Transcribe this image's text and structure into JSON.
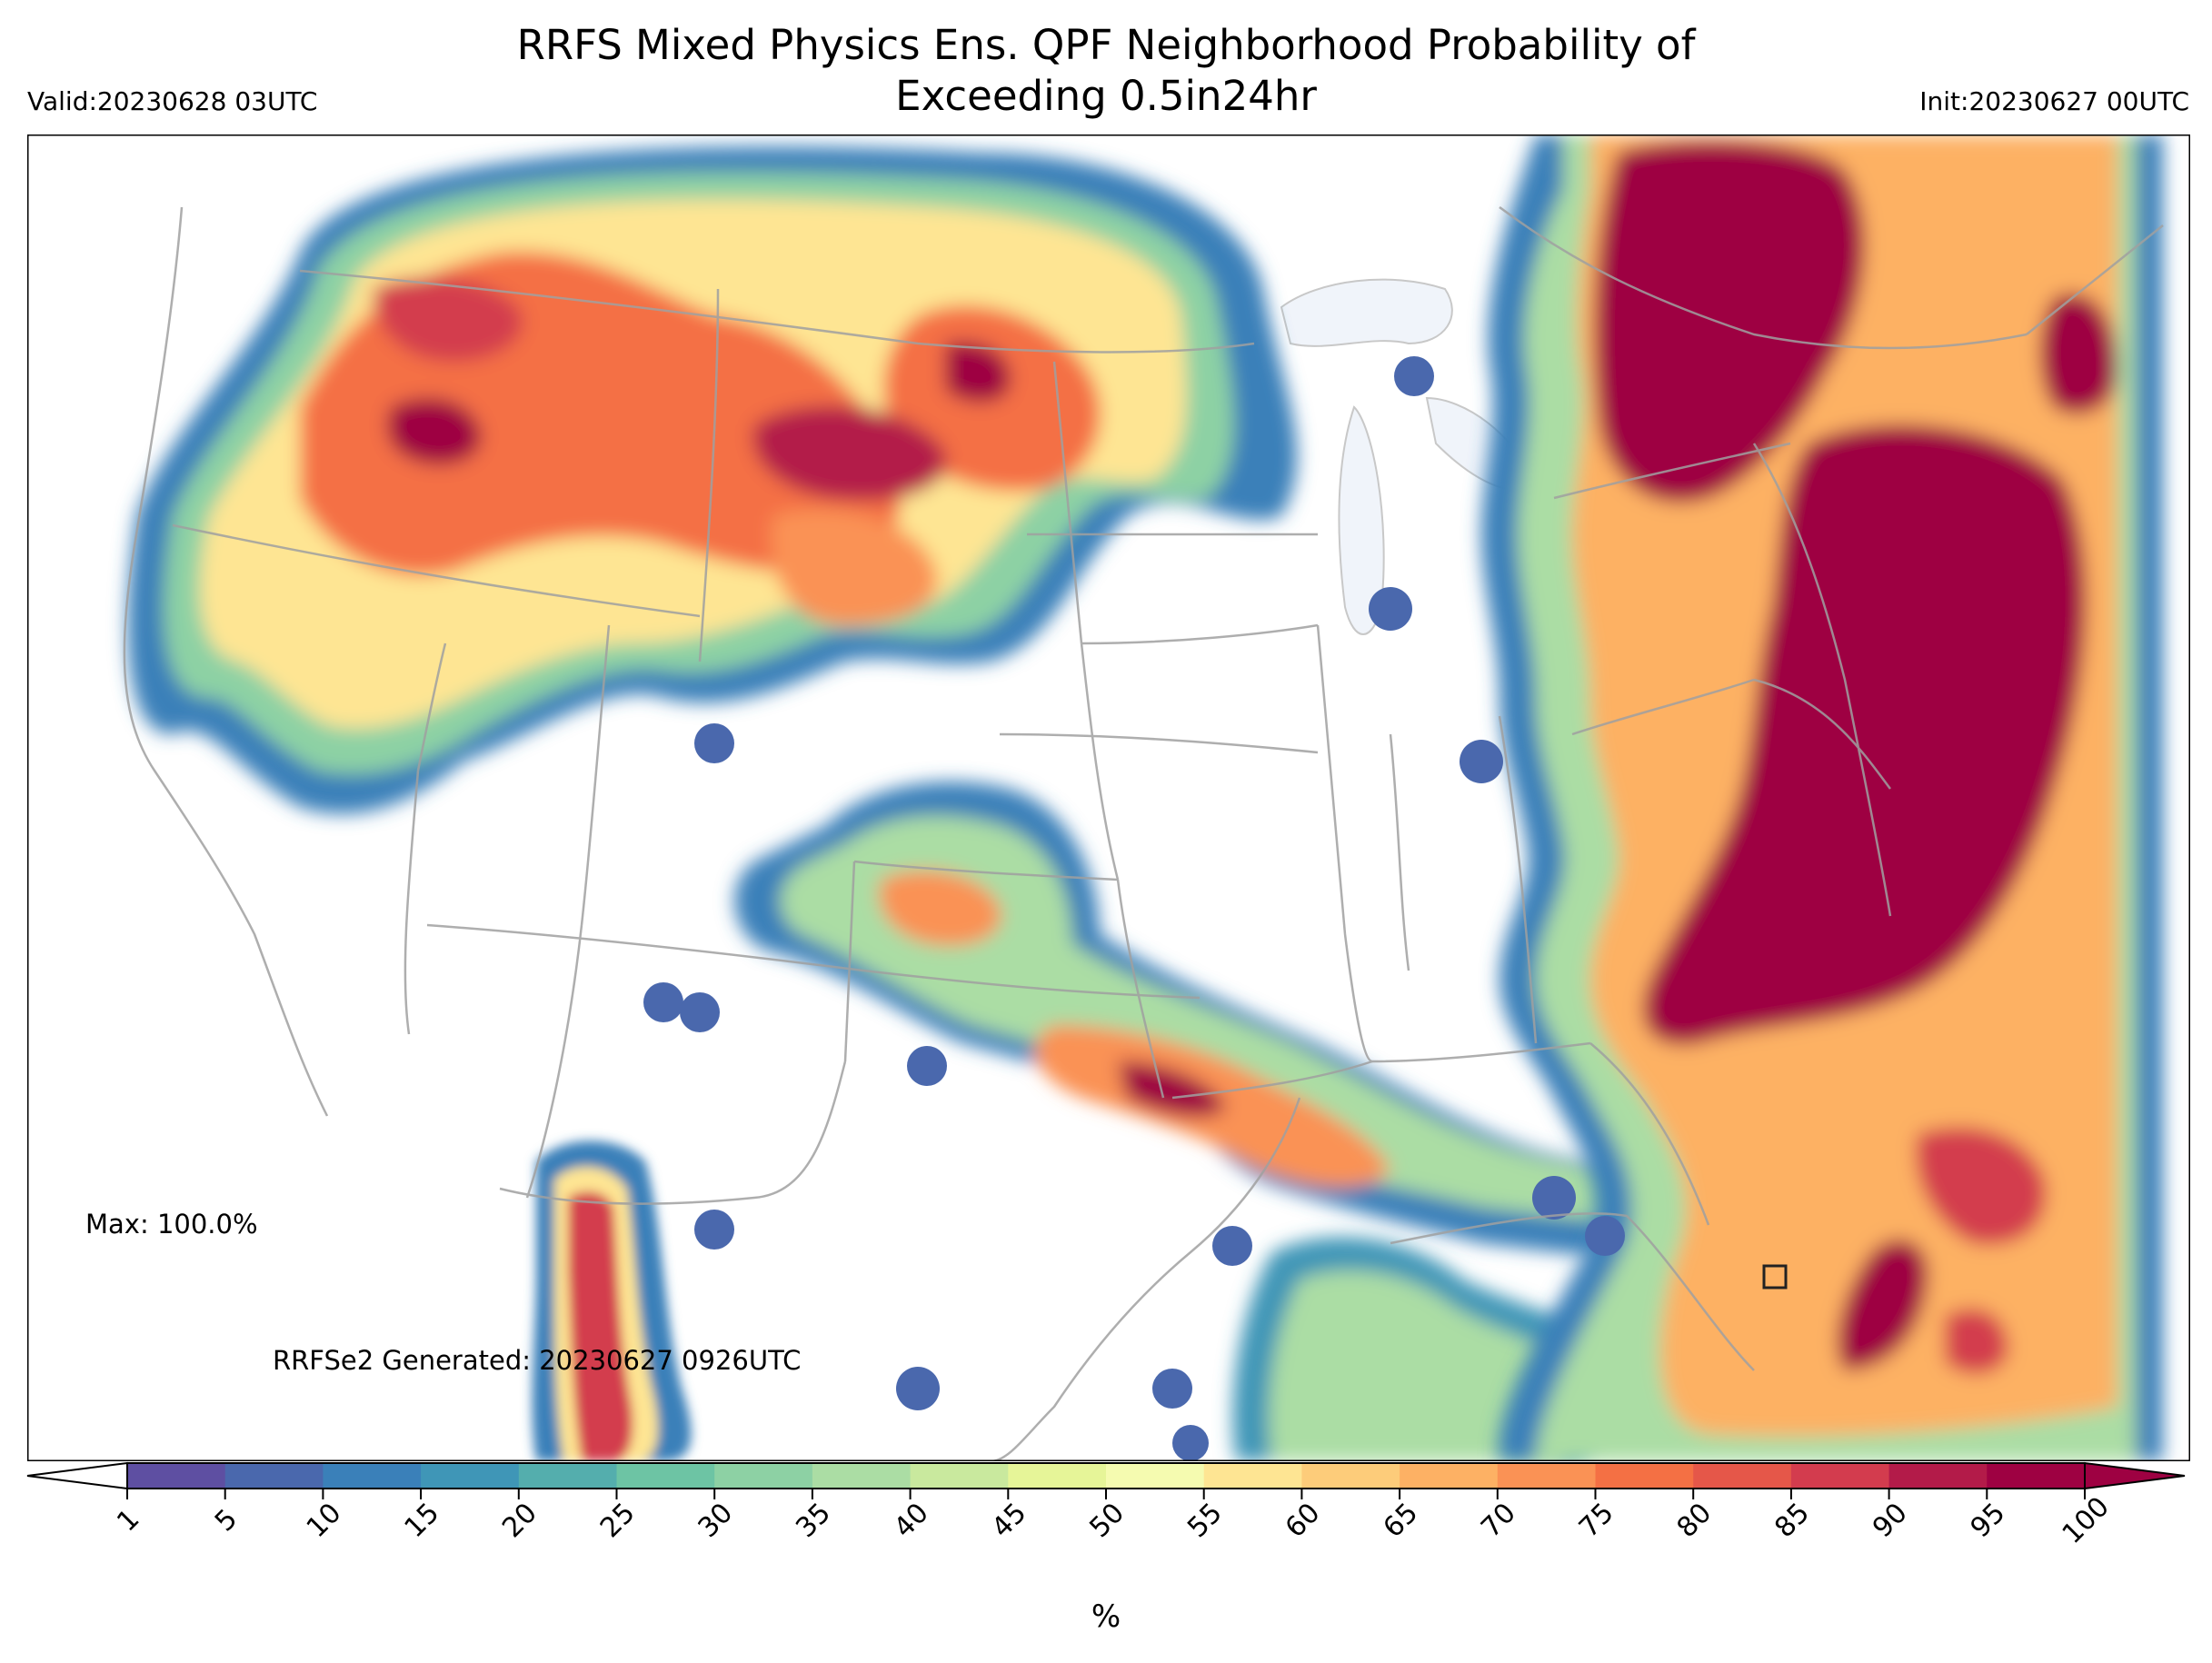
{
  "header": {
    "title_line1": "RRFS Mixed Physics Ens. QPF Neighborhood Probability of",
    "title_line2": "Exceeding 0.5in24hr",
    "valid": "Valid:20230628 03UTC",
    "init": "Init:20230627 00UTC"
  },
  "annotations": {
    "max": "Max: 100.0%",
    "generated": "RRFSe2 Generated: 20230627 0926UTC"
  },
  "colorbar": {
    "unit": "%",
    "ticks": [
      "1",
      "5",
      "10",
      "15",
      "20",
      "25",
      "30",
      "35",
      "40",
      "45",
      "50",
      "55",
      "60",
      "65",
      "70",
      "75",
      "80",
      "85",
      "90",
      "95",
      "100"
    ],
    "colors": [
      "#5e4fa2",
      "#4a68ad",
      "#3a80b9",
      "#3f96b7",
      "#54aead",
      "#6dc4a4",
      "#8dd1a4",
      "#abdda4",
      "#c9e99e",
      "#e6f598",
      "#f5fbb0",
      "#fee593",
      "#fdcc7a",
      "#fdb164",
      "#fa9255",
      "#f47044",
      "#e55749",
      "#d33c4e",
      "#b31b49",
      "#9e0142"
    ],
    "extend": "both"
  },
  "map": {
    "projection": "Lambert conformal, CONUS",
    "field": "Neighborhood probability of 24-h QPF exceeding 0.5 in",
    "lake_color": "#f0f4fa",
    "border_color": "#a0a0a0"
  }
}
